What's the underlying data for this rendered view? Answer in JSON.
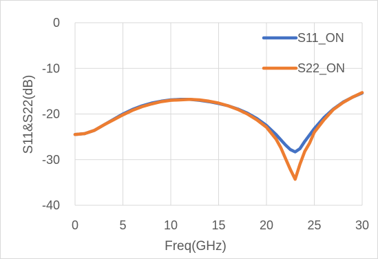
{
  "chart_data": {
    "type": "line",
    "title": "",
    "xlabel": "Freq(GHz)",
    "ylabel": "S11&S22(dB)",
    "xlim": [
      0,
      30
    ],
    "ylim": [
      -40,
      0
    ],
    "xticks": [
      "0",
      "5",
      "10",
      "15",
      "20",
      "25",
      "30"
    ],
    "yticks": [
      "0",
      "-10",
      "-20",
      "-30",
      "-40"
    ],
    "grid": true,
    "legend_position": "top-right",
    "series": [
      {
        "name": "S11_ON",
        "color": "#4472C4",
        "x": [
          0,
          1,
          2,
          3,
          4,
          5,
          6,
          7,
          8,
          9,
          10,
          11,
          12,
          13,
          14,
          15,
          16,
          17,
          18,
          19,
          20,
          21,
          22,
          22.5,
          23,
          23.5,
          24,
          25,
          26,
          27,
          28,
          29,
          30
        ],
        "y": [
          -24.5,
          -24.3,
          -23.6,
          -22.4,
          -21.2,
          -20.0,
          -19.0,
          -18.2,
          -17.6,
          -17.2,
          -16.9,
          -16.8,
          -16.8,
          -17.0,
          -17.3,
          -17.7,
          -18.2,
          -18.9,
          -19.8,
          -21.0,
          -22.5,
          -24.5,
          -26.8,
          -27.8,
          -28.3,
          -27.6,
          -26.0,
          -23.2,
          -20.8,
          -18.9,
          -17.4,
          -16.3,
          -15.4
        ]
      },
      {
        "name": "S22_ON",
        "color": "#ED7D31",
        "x": [
          0,
          1,
          2,
          3,
          4,
          5,
          6,
          7,
          8,
          9,
          10,
          11,
          12,
          13,
          14,
          15,
          16,
          17,
          18,
          19,
          20,
          21,
          21.5,
          22,
          22.5,
          23,
          23.5,
          24,
          24.5,
          25,
          26,
          27,
          28,
          29,
          30
        ],
        "y": [
          -24.5,
          -24.3,
          -23.6,
          -22.4,
          -21.3,
          -20.2,
          -19.2,
          -18.4,
          -17.8,
          -17.3,
          -17.0,
          -16.9,
          -16.8,
          -16.9,
          -17.2,
          -17.6,
          -18.2,
          -19.0,
          -20.0,
          -21.3,
          -22.9,
          -25.5,
          -27.4,
          -29.8,
          -32.2,
          -34.3,
          -31.0,
          -28.2,
          -26.4,
          -24.0,
          -21.3,
          -19.0,
          -17.5,
          -16.3,
          -15.3
        ]
      }
    ]
  }
}
